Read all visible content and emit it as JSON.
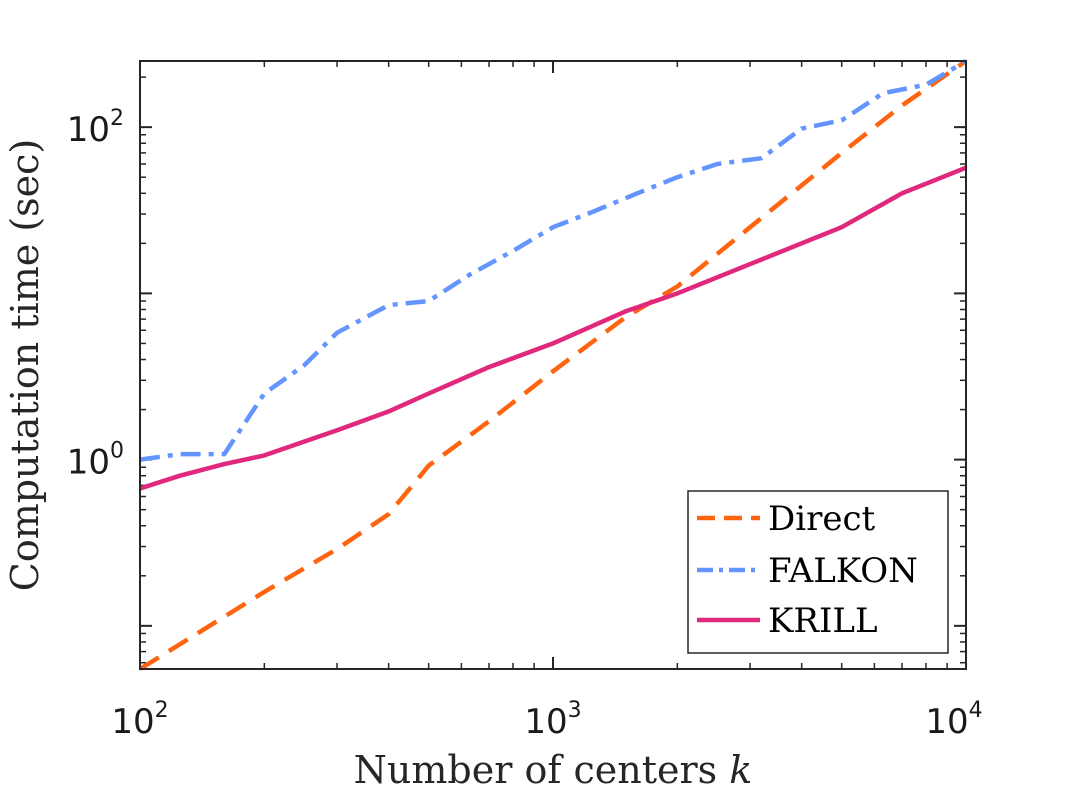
{
  "chart_data": {
    "type": "line",
    "xlabel": "Number of centers",
    "xlabel_var": "k",
    "ylabel": "Computation time (sec)",
    "xscale": "log",
    "yscale": "log",
    "xlim": [
      100,
      10000
    ],
    "ylim": [
      0.055,
      250
    ],
    "x_ticks": [
      {
        "base": "10",
        "exp": "2",
        "value": 100
      },
      {
        "base": "10",
        "exp": "3",
        "value": 1000
      },
      {
        "base": "10",
        "exp": "4",
        "value": 10000
      }
    ],
    "y_ticks": [
      {
        "base": "10",
        "exp": "0",
        "value": 1
      },
      {
        "base": "10",
        "exp": "2",
        "value": 100
      }
    ],
    "grid": false,
    "legend_position": "bottom-right",
    "series": [
      {
        "name": "Direct",
        "color": "#ff6410",
        "style": "dashed",
        "x": [
          100,
          200,
          300,
          400,
          500,
          700,
          1000,
          1500,
          2000,
          3000,
          5000,
          7000,
          10000
        ],
        "y": [
          0.055,
          0.16,
          0.29,
          0.47,
          0.92,
          1.7,
          3.4,
          7.2,
          11,
          25,
          70,
          135,
          250
        ]
      },
      {
        "name": "FALKON",
        "color": "#6495ff",
        "style": "dashdot",
        "x": [
          100,
          125,
          160,
          200,
          250,
          300,
          400,
          500,
          630,
          800,
          1000,
          1250,
          1600,
          2000,
          2500,
          3200,
          4000,
          5000,
          6300,
          8000,
          10000
        ],
        "y": [
          1.0,
          1.08,
          1.08,
          2.5,
          3.7,
          5.8,
          8.5,
          9.0,
          13.0,
          18.0,
          25.0,
          31.0,
          40.0,
          50.0,
          60.0,
          65.0,
          98.0,
          110.0,
          160.0,
          180.0,
          250.0
        ]
      },
      {
        "name": "KRILL",
        "color": "#e0287d",
        "style": "solid",
        "x": [
          100,
          125,
          160,
          200,
          300,
          400,
          500,
          700,
          1000,
          1500,
          2000,
          3000,
          5000,
          7000,
          10000
        ],
        "y": [
          0.67,
          0.8,
          0.94,
          1.06,
          1.5,
          1.95,
          2.5,
          3.6,
          5.0,
          7.8,
          10.0,
          15.0,
          25.0,
          40.0,
          57.0
        ]
      }
    ]
  }
}
